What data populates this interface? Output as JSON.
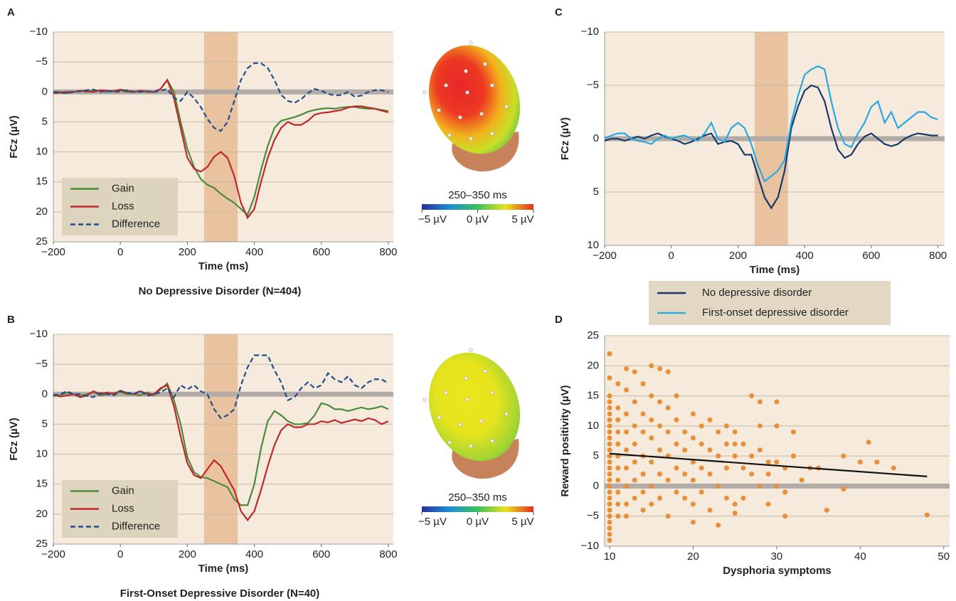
{
  "chart_data": [
    {
      "type": "line",
      "panel_label": "A",
      "title": "No Depressive Disorder (N=404)",
      "xlabel": "Time (ms)",
      "ylabel": "FCz (µV)",
      "xlim": [
        -200,
        815
      ],
      "ylim": [
        -10,
        25
      ],
      "y_inverted": true,
      "grid": true,
      "zero_line": true,
      "legend": "lower left",
      "background": "#f5eadb",
      "xticks": [
        {
          "value": -200,
          "label": "−200"
        },
        0,
        200,
        400,
        600,
        800
      ],
      "yticks": [
        {
          "value": -10,
          "label": "−10"
        },
        {
          "value": -5,
          "label": "−5"
        },
        0,
        5,
        10,
        15,
        20,
        25
      ],
      "highlight": [
        250,
        350
      ],
      "highlight_color": "#e9c3a0",
      "x": [
        -200,
        -180,
        -160,
        -140,
        -120,
        -100,
        -80,
        -60,
        -40,
        -20,
        0,
        20,
        40,
        60,
        80,
        100,
        120,
        140,
        160,
        180,
        200,
        220,
        240,
        260,
        280,
        300,
        320,
        340,
        360,
        380,
        400,
        420,
        440,
        460,
        480,
        500,
        520,
        540,
        560,
        580,
        600,
        620,
        640,
        660,
        680,
        700,
        720,
        740,
        760,
        780,
        800
      ],
      "series": [
        {
          "name": "Gain",
          "color": "#4b8b3b",
          "style": "solid",
          "values": [
            0,
            0,
            0.2,
            0,
            -0.2,
            0,
            -0.3,
            -0.2,
            0,
            -0.2,
            -0.3,
            0,
            0,
            -0.2,
            0,
            0,
            -0.5,
            -2,
            0,
            5,
            9.5,
            12.5,
            14.5,
            15.5,
            16,
            17,
            17.8,
            18.5,
            19.5,
            20.5,
            17.5,
            13,
            9,
            6,
            4.8,
            4.5,
            4.2,
            3.8,
            3.3,
            3,
            2.8,
            2.7,
            2.8,
            2.6,
            2.5,
            2.5,
            2.7,
            2.8,
            2.8,
            3,
            3.2
          ]
        },
        {
          "name": "Loss",
          "color": "#c1272d",
          "style": "solid",
          "values": [
            0.2,
            0.1,
            0,
            0,
            -0.2,
            -0.1,
            0,
            -0.3,
            -0.2,
            -0.1,
            -0.4,
            -0.2,
            0,
            -0.2,
            -0.1,
            0,
            -0.5,
            -2,
            1,
            6,
            11,
            12.8,
            13.3,
            12.5,
            10.8,
            10,
            11,
            14,
            18.5,
            21,
            19.5,
            15,
            11,
            8,
            6,
            5,
            5.5,
            5.5,
            4.8,
            3.8,
            3.5,
            3.4,
            3.2,
            3,
            2.6,
            2.4,
            2.4,
            2.6,
            2.8,
            3.1,
            3.4
          ]
        },
        {
          "name": "Difference",
          "color": "#1f4e8c",
          "style": "dashed",
          "values": [
            0,
            0.1,
            0.2,
            0,
            -0.1,
            -0.3,
            -0.4,
            0,
            -0.2,
            0,
            -0.1,
            -0.3,
            0,
            0,
            -0.1,
            0,
            -0.2,
            -0.5,
            1,
            1.5,
            0,
            1,
            2.5,
            4.5,
            6,
            6.5,
            5,
            1.5,
            -2,
            -4,
            -4.8,
            -4.8,
            -4,
            -2,
            0.5,
            1.5,
            1.8,
            1.2,
            0.2,
            -0.5,
            -0.2,
            0.3,
            0.6,
            0.5,
            0,
            0.8,
            0.6,
            0,
            -0.3,
            -0.3,
            0
          ]
        }
      ],
      "colorbar": {
        "title": "250–350 ms",
        "clim": [
          -5,
          5
        ],
        "ticks": [
          {
            "value": -5,
            "label": "−5 µV"
          },
          {
            "value": 0,
            "label": "0 µV"
          },
          {
            "value": 5,
            "label": "5 µV"
          }
        ]
      }
    },
    {
      "type": "line",
      "panel_label": "B",
      "title": "First-Onset Depressive Disorder (N=40)",
      "xlabel": "Time (ms)",
      "ylabel": "FCz (µV)",
      "xlim": [
        -200,
        815
      ],
      "ylim": [
        -10,
        25
      ],
      "y_inverted": true,
      "grid": true,
      "zero_line": true,
      "legend": "lower left",
      "background": "#f5eadb",
      "xticks": [
        {
          "value": -200,
          "label": "−200"
        },
        0,
        200,
        400,
        600,
        800
      ],
      "yticks": [
        {
          "value": -10,
          "label": "−10"
        },
        {
          "value": -5,
          "label": "−5"
        },
        0,
        5,
        10,
        15,
        20,
        25
      ],
      "highlight": [
        250,
        350
      ],
      "highlight_color": "#e9c3a0",
      "x": [
        -200,
        -180,
        -160,
        -140,
        -120,
        -100,
        -80,
        -60,
        -40,
        -20,
        0,
        20,
        40,
        60,
        80,
        100,
        120,
        140,
        160,
        180,
        200,
        220,
        240,
        260,
        280,
        300,
        320,
        340,
        360,
        380,
        400,
        420,
        440,
        460,
        480,
        500,
        520,
        540,
        560,
        580,
        600,
        620,
        640,
        660,
        680,
        700,
        720,
        740,
        760,
        780,
        800
      ],
      "series": [
        {
          "name": "Gain",
          "color": "#4b8b3b",
          "style": "solid",
          "values": [
            0.3,
            0.2,
            -0.3,
            0,
            0.3,
            0,
            -0.4,
            0.2,
            0,
            -0.2,
            -0.4,
            0,
            0,
            0.2,
            -0.3,
            0.2,
            -0.8,
            -1.8,
            1,
            5,
            10.5,
            13,
            13.8,
            14,
            14.5,
            15,
            15.5,
            17.5,
            18.5,
            18.5,
            15,
            9,
            4.5,
            2.8,
            3.5,
            4.5,
            5,
            5,
            4.8,
            3.5,
            1.5,
            1.8,
            2.5,
            2.5,
            2.8,
            2.5,
            2.2,
            2.5,
            2.3,
            2,
            2.5
          ]
        },
        {
          "name": "Loss",
          "color": "#c1272d",
          "style": "solid",
          "values": [
            0,
            0.4,
            0.2,
            0,
            0.5,
            0.2,
            -0.5,
            0,
            -0.3,
            0,
            -0.6,
            -0.2,
            0,
            -0.5,
            0,
            0,
            -1,
            -1.5,
            2,
            7,
            11.5,
            13.5,
            14,
            12.5,
            11,
            12,
            14,
            16,
            19.5,
            21,
            19.5,
            16,
            12,
            8.5,
            6,
            5,
            5.5,
            5.5,
            5,
            5,
            4.5,
            4.7,
            4.3,
            4.8,
            4.5,
            4.2,
            4.5,
            4,
            4.3,
            5,
            4.5
          ]
        },
        {
          "name": "Difference",
          "color": "#1f4e8c",
          "style": "dashed",
          "values": [
            0.2,
            0,
            -0.5,
            0,
            0,
            0.3,
            0.5,
            -0.2,
            0,
            0.2,
            -0.5,
            -0.3,
            0,
            -0.6,
            0.3,
            0,
            -0.3,
            -1,
            0.5,
            -1.5,
            -0.8,
            -1.5,
            -0.5,
            0,
            2.5,
            4,
            3.5,
            2.5,
            -1.5,
            -4.5,
            -6.5,
            -6.5,
            -6.5,
            -4,
            -2,
            1,
            0.5,
            -1,
            -2,
            -1,
            -1.5,
            -3.5,
            -2.5,
            -2,
            -3,
            -1.5,
            -1,
            -2,
            -2.5,
            -2.5,
            -1.8
          ]
        }
      ],
      "colorbar": {
        "title": "250–350 ms",
        "clim": [
          -5,
          5
        ],
        "ticks": [
          {
            "value": -5,
            "label": "−5 µV"
          },
          {
            "value": 0,
            "label": "0 µV"
          },
          {
            "value": 5,
            "label": "5 µV"
          }
        ]
      }
    },
    {
      "type": "line",
      "panel_label": "C",
      "xlabel": "Time (ms)",
      "ylabel": "FCz (µV)",
      "xlim": [
        -200,
        820
      ],
      "ylim": [
        -10,
        10
      ],
      "y_inverted": true,
      "grid": true,
      "zero_line": true,
      "legend": "below",
      "background": "#f5eadb",
      "xticks": [
        {
          "value": -200,
          "label": "−200"
        },
        0,
        200,
        400,
        600,
        800
      ],
      "yticks": [
        {
          "value": -10,
          "label": "−10"
        },
        {
          "value": -5,
          "label": "−5"
        },
        0,
        5,
        10
      ],
      "highlight": [
        250,
        350
      ],
      "highlight_color": "#e9c3a0",
      "x": [
        -200,
        -180,
        -160,
        -140,
        -120,
        -100,
        -80,
        -60,
        -40,
        -20,
        0,
        20,
        40,
        60,
        80,
        100,
        120,
        140,
        160,
        180,
        200,
        220,
        240,
        260,
        280,
        300,
        320,
        340,
        360,
        380,
        400,
        420,
        440,
        460,
        480,
        500,
        520,
        540,
        560,
        580,
        600,
        620,
        640,
        660,
        680,
        700,
        720,
        740,
        760,
        780,
        800
      ],
      "series": [
        {
          "name": "No depressive disorder",
          "color": "#17396b",
          "style": "solid",
          "values": [
            0.2,
            0,
            0,
            0.2,
            0,
            -0.2,
            0,
            -0.3,
            -0.5,
            -0.2,
            0,
            0.2,
            0.5,
            0.3,
            0,
            -0.3,
            -0.5,
            0.5,
            0.3,
            0.2,
            0.5,
            1.5,
            1.5,
            3.5,
            5.5,
            6.5,
            5.5,
            3,
            -1,
            -3,
            -4.5,
            -5,
            -4.8,
            -3.5,
            -1,
            1,
            1.8,
            1.5,
            0.5,
            -0.2,
            -0.5,
            0,
            0.5,
            0.7,
            0.5,
            0,
            -0.3,
            -0.5,
            -0.4,
            -0.3,
            -0.3
          ]
        },
        {
          "name": "First-onset depressive disorder",
          "color": "#29a9e1",
          "style": "solid",
          "values": [
            0,
            -0.3,
            -0.5,
            -0.5,
            0,
            0.2,
            0.3,
            0.5,
            0,
            -0.3,
            0,
            -0.2,
            -0.3,
            0,
            0.2,
            -0.5,
            -1.5,
            0,
            0.3,
            -1,
            -1.5,
            -1,
            0.5,
            2.5,
            4,
            3.5,
            3,
            2,
            -1.5,
            -4,
            -6,
            -6.5,
            -6.8,
            -6.5,
            -3.5,
            -1,
            0.5,
            0.8,
            -0.5,
            -1.5,
            -3,
            -3.5,
            -1.5,
            -2.5,
            -1,
            -1.5,
            -2,
            -2.5,
            -2.5,
            -2,
            -1.8
          ]
        }
      ]
    },
    {
      "type": "scatter",
      "panel_label": "D",
      "xlabel": "Dysphoria symptoms",
      "ylabel": "Reward positivity (µV)",
      "xlim": [
        9.4,
        50.7
      ],
      "ylim": [
        -10,
        25
      ],
      "grid": true,
      "zero_line": true,
      "background": "#f5eadb",
      "xticks": [
        10,
        20,
        30,
        40,
        50
      ],
      "yticks": [
        {
          "value": -10,
          "label": "−10"
        },
        {
          "value": -5,
          "label": "−5"
        },
        0,
        5,
        10,
        15,
        20,
        25
      ],
      "series": [
        {
          "color": "#e98f38",
          "x": [
            10,
            10,
            10,
            10,
            10,
            10,
            10,
            10,
            10,
            10,
            10,
            10,
            10,
            10,
            10,
            10,
            10,
            10,
            10,
            10,
            10,
            10,
            10,
            10,
            10,
            10,
            10,
            11,
            11,
            11,
            11,
            11,
            11,
            11,
            11,
            11,
            11,
            11,
            12,
            12,
            12,
            12,
            12,
            12,
            12,
            12,
            12,
            13,
            13,
            13,
            13,
            13,
            13,
            13,
            14,
            14,
            14,
            14,
            14,
            14,
            14,
            15,
            15,
            15,
            15,
            15,
            15,
            15,
            16,
            16,
            16,
            16,
            16,
            16,
            17,
            17,
            17,
            17,
            17,
            17,
            18,
            18,
            18,
            18,
            18,
            19,
            19,
            19,
            19,
            20,
            20,
            20,
            20,
            20,
            20,
            21,
            21,
            21,
            21,
            22,
            22,
            22,
            22,
            23,
            23,
            23,
            23,
            24,
            24,
            24,
            24,
            25,
            25,
            25,
            25,
            25,
            26,
            26,
            26,
            27,
            27,
            27,
            28,
            28,
            28,
            28,
            29,
            29,
            29,
            30,
            30,
            30,
            30,
            31,
            31,
            31,
            32,
            32,
            33,
            34,
            35,
            36,
            38,
            38,
            40,
            41,
            42,
            44,
            48
          ],
          "values": [
            22,
            18,
            15,
            14,
            12,
            10,
            9,
            8,
            7,
            6,
            5,
            4,
            3,
            2,
            1,
            0,
            -1,
            -2,
            -3,
            -4,
            -5,
            -6,
            -7,
            -8,
            -9,
            11,
            13,
            17,
            13,
            11,
            9,
            7,
            5,
            3,
            1,
            -1,
            -3,
            -5,
            19.5,
            16,
            12,
            9,
            6,
            3,
            0,
            -3,
            -5,
            19,
            14,
            10,
            7,
            4,
            1,
            -2,
            17,
            12,
            9,
            5,
            2,
            -1,
            -4,
            20,
            15,
            11,
            8,
            4,
            0,
            -3,
            19.5,
            14,
            10,
            6,
            2,
            -2,
            19,
            13,
            9,
            5,
            1,
            -5,
            15,
            11,
            7,
            3,
            -1,
            9,
            6,
            2,
            -2,
            12,
            8,
            4,
            1,
            -3,
            -6,
            10,
            7,
            3,
            -1,
            11,
            6,
            2,
            -4,
            9,
            5,
            0,
            -6.5,
            10,
            7,
            3,
            -2,
            9,
            7,
            5,
            -3,
            -4.5,
            7,
            3,
            -2,
            15,
            5,
            2,
            14,
            10,
            6,
            0,
            4,
            2,
            -3,
            14,
            10,
            4,
            0,
            3,
            -1,
            -5,
            9,
            5,
            1,
            3,
            3,
            -4,
            5,
            -0.5,
            4,
            7.3,
            4,
            3,
            -4.8
          ]
        }
      ],
      "trendline": {
        "color": "#111111",
        "x": [
          10,
          48
        ],
        "values": [
          5.4,
          1.6
        ]
      }
    }
  ]
}
